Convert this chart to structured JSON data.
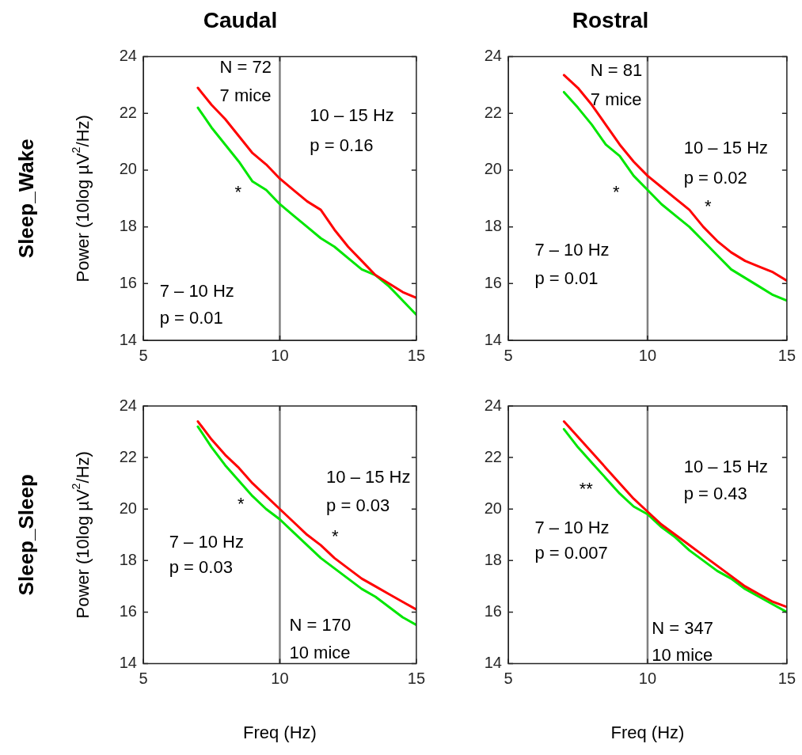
{
  "chart_data": [
    {
      "type": "line",
      "title": "Caudal",
      "ylabel": "Power (10log µV$^{2}$/Hz)",
      "xlim": [
        5,
        15
      ],
      "xticks": [
        5,
        10,
        15
      ],
      "ylim": [
        14,
        24
      ],
      "yticks": [
        14,
        16,
        18,
        20,
        22,
        24
      ],
      "marker": "none",
      "grid": false,
      "legend": false,
      "x": [
        7,
        7.5,
        8,
        8.5,
        9,
        9.5,
        10,
        10.5,
        11,
        11.5,
        12,
        12.5,
        13,
        13.5,
        14,
        14.5,
        15
      ],
      "series": [
        {
          "color": "#ff0000",
          "values": [
            22.9,
            22.3,
            21.8,
            21.2,
            20.6,
            20.2,
            19.7,
            19.3,
            18.9,
            18.6,
            17.9,
            17.3,
            16.8,
            16.3,
            16.0,
            15.7,
            15.5
          ]
        },
        {
          "color": "#00e600",
          "values": [
            22.2,
            21.5,
            20.9,
            20.3,
            19.6,
            19.3,
            18.8,
            18.4,
            18.0,
            17.6,
            17.3,
            16.9,
            16.5,
            16.3,
            15.9,
            15.4,
            14.9
          ]
        }
      ],
      "ref_lines": [
        {
          "axis": "x",
          "value": 10,
          "color": "#808080"
        }
      ],
      "annotations": [
        "Sleep_Wake",
        "N = 72",
        "7 mice",
        "10 – 15 Hz",
        "p = 0.16",
        "*",
        "7 – 10 Hz",
        "p = 0.01"
      ]
    },
    {
      "type": "line",
      "title": "Rostral",
      "xlim": [
        5,
        15
      ],
      "xticks": [
        5,
        10,
        15
      ],
      "ylim": [
        14,
        24
      ],
      "yticks": [
        14,
        16,
        18,
        20,
        22,
        24
      ],
      "marker": "none",
      "grid": false,
      "legend": false,
      "x": [
        7,
        7.5,
        8,
        8.5,
        9,
        9.5,
        10,
        10.5,
        11,
        11.5,
        12,
        12.5,
        13,
        13.5,
        14,
        14.5,
        15
      ],
      "series": [
        {
          "color": "#ff0000",
          "values": [
            23.35,
            22.9,
            22.3,
            21.6,
            20.9,
            20.3,
            19.8,
            19.4,
            19.0,
            18.6,
            18.0,
            17.5,
            17.1,
            16.8,
            16.6,
            16.4,
            16.1
          ]
        },
        {
          "color": "#00e600",
          "values": [
            22.75,
            22.2,
            21.6,
            20.9,
            20.5,
            19.8,
            19.3,
            18.8,
            18.4,
            18.0,
            17.5,
            17.0,
            16.5,
            16.2,
            15.9,
            15.6,
            15.4
          ]
        }
      ],
      "ref_lines": [
        {
          "axis": "x",
          "value": 10,
          "color": "#808080"
        }
      ],
      "annotations": [
        "N = 81",
        "7 mice",
        "10 – 15 Hz",
        "p = 0.02",
        "*",
        "*",
        "7 – 10 Hz",
        "p = 0.01"
      ]
    },
    {
      "type": "line",
      "xlabel": "Freq (Hz)",
      "ylabel": "Power (10log µV$^{2}$/Hz)",
      "xlim": [
        5,
        15
      ],
      "xticks": [
        5,
        10,
        15
      ],
      "ylim": [
        14,
        24
      ],
      "yticks": [
        14,
        16,
        18,
        20,
        22,
        24
      ],
      "marker": "none",
      "grid": false,
      "legend": false,
      "x": [
        7,
        7.5,
        8,
        8.5,
        9,
        9.5,
        10,
        10.5,
        11,
        11.5,
        12,
        12.5,
        13,
        13.5,
        14,
        14.5,
        15
      ],
      "series": [
        {
          "color": "#ff0000",
          "values": [
            23.4,
            22.7,
            22.1,
            21.6,
            21.0,
            20.5,
            20.0,
            19.5,
            19.0,
            18.6,
            18.1,
            17.7,
            17.3,
            17.0,
            16.7,
            16.4,
            16.1
          ]
        },
        {
          "color": "#00e600",
          "values": [
            23.2,
            22.4,
            21.7,
            21.1,
            20.5,
            20.0,
            19.6,
            19.1,
            18.6,
            18.1,
            17.7,
            17.3,
            16.9,
            16.6,
            16.2,
            15.8,
            15.5
          ]
        }
      ],
      "ref_lines": [
        {
          "axis": "x",
          "value": 10,
          "color": "#808080"
        }
      ],
      "annotations": [
        "Sleep_Sleep",
        "*",
        "10 – 15 Hz",
        "p = 0.03",
        "*",
        "7 – 10 Hz",
        "p = 0.03",
        "N = 170",
        "10 mice"
      ]
    },
    {
      "type": "line",
      "xlabel": "Freq (Hz)",
      "xlim": [
        5,
        15
      ],
      "xticks": [
        5,
        10,
        15
      ],
      "ylim": [
        14,
        24
      ],
      "yticks": [
        14,
        16,
        18,
        20,
        22,
        24
      ],
      "marker": "none",
      "grid": false,
      "legend": false,
      "x": [
        7,
        7.5,
        8,
        8.5,
        9,
        9.5,
        10,
        10.5,
        11,
        11.5,
        12,
        12.5,
        13,
        13.5,
        14,
        14.5,
        15
      ],
      "series": [
        {
          "color": "#ff0000",
          "values": [
            23.4,
            22.8,
            22.2,
            21.6,
            21.0,
            20.4,
            19.9,
            19.4,
            19.0,
            18.6,
            18.2,
            17.8,
            17.4,
            17.0,
            16.7,
            16.4,
            16.2
          ]
        },
        {
          "color": "#00e600",
          "values": [
            23.1,
            22.4,
            21.8,
            21.2,
            20.6,
            20.1,
            19.8,
            19.3,
            18.9,
            18.4,
            18.0,
            17.6,
            17.3,
            16.9,
            16.6,
            16.3,
            16.0
          ]
        }
      ],
      "ref_lines": [
        {
          "axis": "x",
          "value": 10,
          "color": "#808080"
        }
      ],
      "annotations": [
        "**",
        "10 – 15 Hz",
        "p = 0.43",
        "7 – 10 Hz",
        "p = 0.007",
        "N = 347",
        "10 mice"
      ]
    }
  ]
}
